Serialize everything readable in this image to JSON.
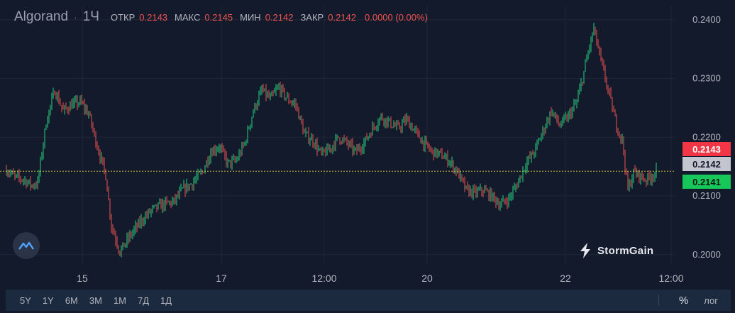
{
  "header": {
    "symbol": "Algorand",
    "separator": "·",
    "timeframe": "1Ч",
    "open_label": "ОТКР",
    "open_value": "0.2143",
    "high_label": "МАКС",
    "high_value": "0.2145",
    "low_label": "МИН",
    "low_value": "0.2142",
    "close_label": "ЗАКР",
    "close_value": "0.2142",
    "change": "0.0000 (0.00%)"
  },
  "brand": {
    "name": "StormGain"
  },
  "toolbar": {
    "ranges": [
      "5Y",
      "1Y",
      "6M",
      "3M",
      "1M",
      "7Д",
      "1Д"
    ],
    "percent_label": "%",
    "log_label": "лог"
  },
  "colors": {
    "up": "#26d07c",
    "down": "#ef5350",
    "background": "#131a2b",
    "grid": "#1f2738",
    "last_price_line": "#c9c34a"
  },
  "chart_data": {
    "type": "candlestick",
    "y_ticks": [
      "0.2000",
      "0.2100",
      "0.2200",
      "0.2300",
      "0.2400"
    ],
    "x_ticks": [
      "15",
      "17",
      "12:00",
      "20",
      "22",
      "12:00"
    ],
    "ylim": [
      0.1984,
      0.2424
    ],
    "price_tags": {
      "high": "0.2143",
      "last": "0.2142",
      "low": "0.2141"
    },
    "close_path": [
      [
        0,
        0.2145
      ],
      [
        6,
        0.2132
      ],
      [
        12,
        0.2128
      ],
      [
        18,
        0.2118
      ],
      [
        22,
        0.2122
      ],
      [
        28,
        0.2225
      ],
      [
        34,
        0.228
      ],
      [
        40,
        0.2245
      ],
      [
        46,
        0.2255
      ],
      [
        52,
        0.226
      ],
      [
        58,
        0.224
      ],
      [
        64,
        0.2185
      ],
      [
        70,
        0.2135
      ],
      [
        74,
        0.205
      ],
      [
        80,
        0.2005
      ],
      [
        88,
        0.2035
      ],
      [
        96,
        0.206
      ],
      [
        102,
        0.2075
      ],
      [
        110,
        0.2085
      ],
      [
        118,
        0.209
      ],
      [
        124,
        0.211
      ],
      [
        130,
        0.212
      ],
      [
        138,
        0.214
      ],
      [
        144,
        0.2175
      ],
      [
        150,
        0.2185
      ],
      [
        156,
        0.2155
      ],
      [
        162,
        0.216
      ],
      [
        168,
        0.219
      ],
      [
        174,
        0.2245
      ],
      [
        180,
        0.228
      ],
      [
        186,
        0.2265
      ],
      [
        192,
        0.2285
      ],
      [
        198,
        0.2265
      ],
      [
        204,
        0.2255
      ],
      [
        210,
        0.2205
      ],
      [
        216,
        0.2195
      ],
      [
        222,
        0.217
      ],
      [
        228,
        0.218
      ],
      [
        234,
        0.22
      ],
      [
        240,
        0.219
      ],
      [
        246,
        0.2175
      ],
      [
        252,
        0.219
      ],
      [
        258,
        0.2215
      ],
      [
        264,
        0.2235
      ],
      [
        270,
        0.2225
      ],
      [
        276,
        0.2215
      ],
      [
        282,
        0.223
      ],
      [
        288,
        0.221
      ],
      [
        294,
        0.219
      ],
      [
        300,
        0.2175
      ],
      [
        306,
        0.217
      ],
      [
        312,
        0.216
      ],
      [
        318,
        0.214
      ],
      [
        324,
        0.211
      ],
      [
        330,
        0.2105
      ],
      [
        336,
        0.211
      ],
      [
        342,
        0.21
      ],
      [
        348,
        0.2085
      ],
      [
        354,
        0.2095
      ],
      [
        360,
        0.212
      ],
      [
        366,
        0.2155
      ],
      [
        372,
        0.2175
      ],
      [
        378,
        0.221
      ],
      [
        384,
        0.2245
      ],
      [
        390,
        0.222
      ],
      [
        396,
        0.2235
      ],
      [
        402,
        0.226
      ],
      [
        406,
        0.23
      ],
      [
        410,
        0.2345
      ],
      [
        414,
        0.2385
      ],
      [
        418,
        0.234
      ],
      [
        422,
        0.23
      ],
      [
        426,
        0.226
      ],
      [
        430,
        0.222
      ],
      [
        434,
        0.2195
      ],
      [
        438,
        0.211
      ],
      [
        442,
        0.214
      ],
      [
        446,
        0.2135
      ],
      [
        450,
        0.2128
      ],
      [
        454,
        0.2132
      ],
      [
        458,
        0.2142
      ]
    ]
  }
}
